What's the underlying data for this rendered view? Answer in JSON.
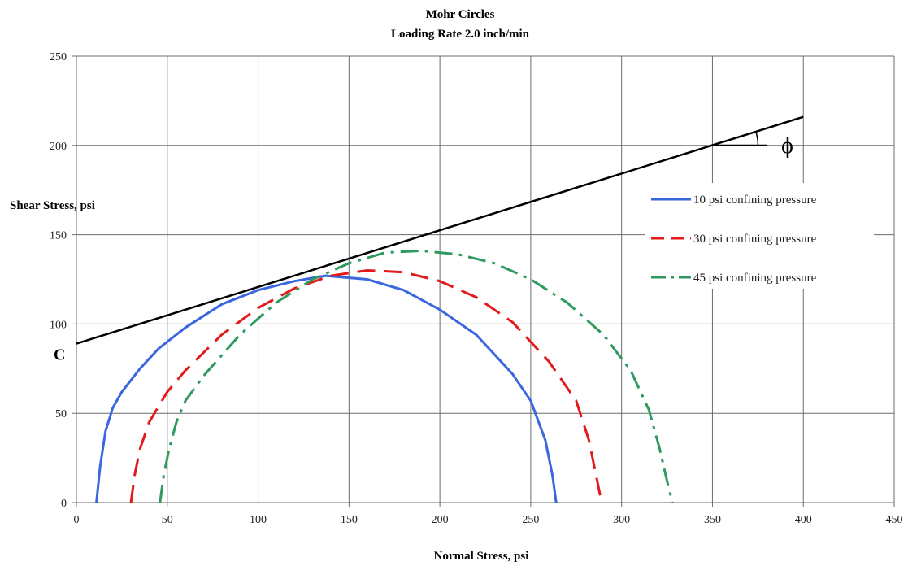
{
  "chart_data": {
    "type": "line",
    "title": "Mohr Circles",
    "subtitle": "Loading Rate 2.0 inch/min",
    "xlabel": "Normal Stress, psi",
    "ylabel": "Shear Stress, psi",
    "xlim": [
      0,
      450
    ],
    "ylim": [
      0,
      250
    ],
    "xticks": [
      "0",
      "50",
      "100",
      "150",
      "200",
      "250",
      "300",
      "350",
      "400",
      "450"
    ],
    "yticks": [
      "0",
      "50",
      "100",
      "150",
      "200",
      "250"
    ],
    "grid": true,
    "legend_position": "right",
    "series": [
      {
        "name": "10 psi confining pressure",
        "color": "#3a66e0",
        "style": "solid",
        "x": [
          11,
          13,
          16,
          20,
          25,
          35,
          45,
          60,
          80,
          100,
          120,
          137,
          160,
          180,
          200,
          220,
          240,
          250,
          258,
          262,
          264
        ],
        "y": [
          0,
          20,
          40,
          53,
          62,
          75,
          86,
          98,
          111,
          119,
          124,
          127,
          125,
          119,
          108,
          94,
          72,
          57,
          35,
          15,
          0
        ]
      },
      {
        "name": "30 psi confining pressure",
        "color": "#e31a1c",
        "style": "dashed",
        "x": [
          30,
          32,
          35,
          40,
          50,
          60,
          80,
          100,
          120,
          140,
          160,
          180,
          200,
          220,
          240,
          260,
          275,
          282,
          286,
          289
        ],
        "y": [
          0,
          15,
          30,
          45,
          62,
          74,
          94,
          109,
          120,
          127,
          130,
          129,
          124,
          115,
          101,
          79,
          57,
          35,
          15,
          0
        ]
      },
      {
        "name": "45 psi confining pressure",
        "color": "#2e9a5e",
        "style": "dashdot",
        "x": [
          46,
          48,
          51,
          55,
          60,
          70,
          90,
          110,
          130,
          150,
          170,
          190,
          210,
          230,
          250,
          270,
          290,
          305,
          315,
          321,
          325,
          328
        ],
        "y": [
          0,
          15,
          30,
          45,
          57,
          71,
          94,
          112,
          125,
          134,
          140,
          141,
          139,
          134,
          125,
          112,
          94,
          74,
          52,
          30,
          12,
          0
        ]
      },
      {
        "color": "#000000",
        "style": "solid",
        "x": [
          0,
          400
        ],
        "y": [
          89,
          216
        ]
      }
    ],
    "annotations": [
      {
        "text": "C",
        "at": [
          0,
          89
        ]
      },
      {
        "text": "ϕ",
        "at": [
          350,
          200
        ]
      }
    ]
  }
}
